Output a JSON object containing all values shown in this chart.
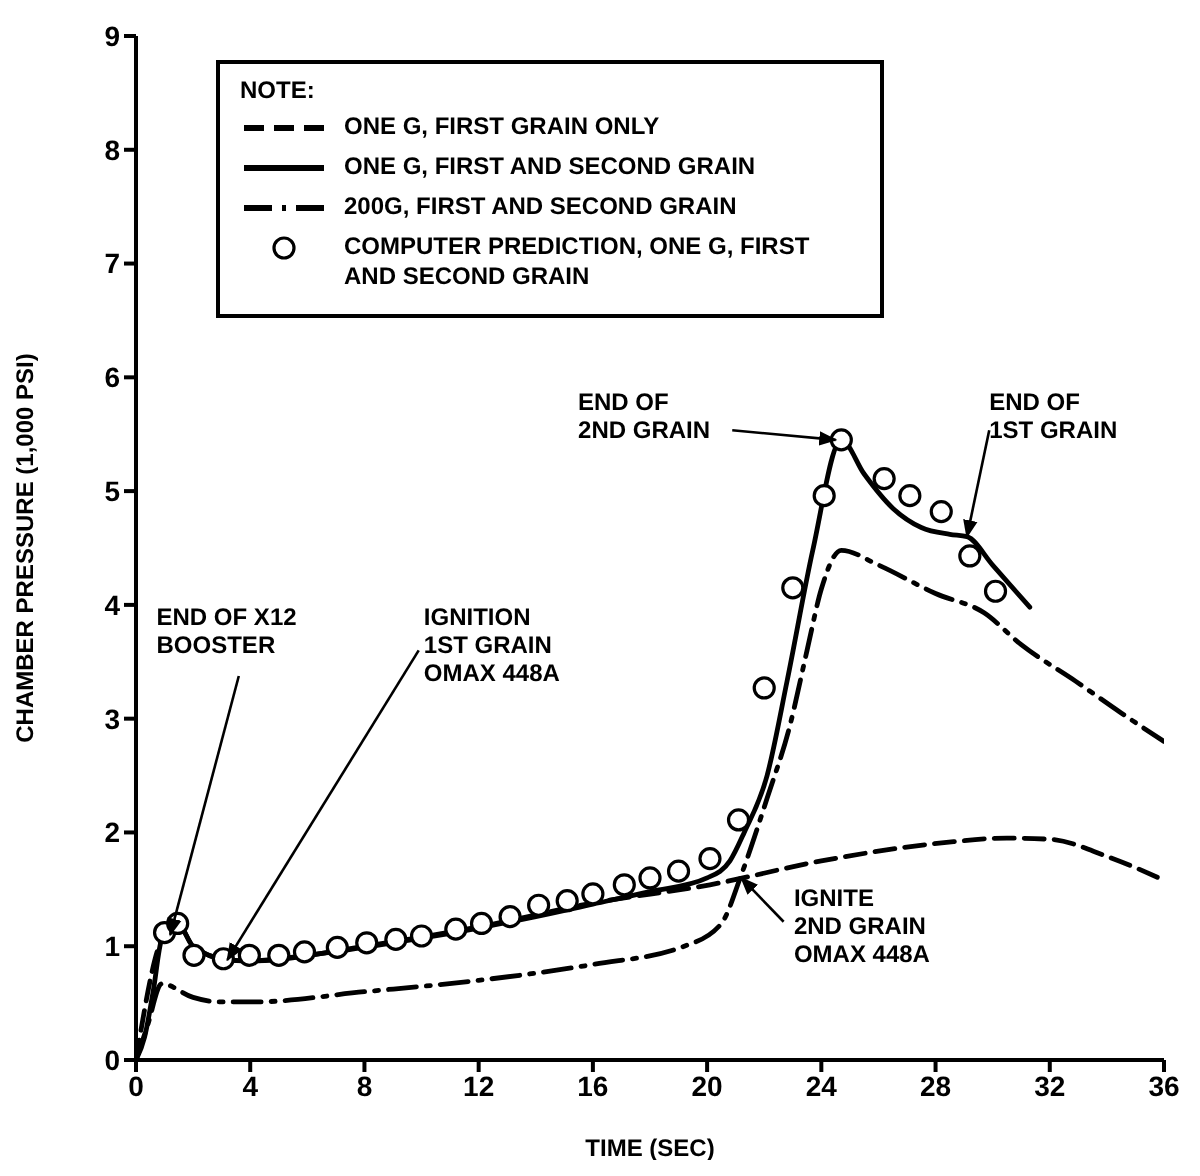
{
  "chart_data": {
    "type": "line",
    "xlabel": "TIME (SEC)",
    "ylabel": "CHAMBER PRESSURE (1,000 PSI)",
    "legend_title": "NOTE:",
    "legend": "top left",
    "grid": false,
    "xlim": [
      0,
      36
    ],
    "xticks": [
      0,
      4,
      8,
      12,
      16,
      20,
      24,
      28,
      32,
      36
    ],
    "ylim": [
      0,
      9
    ],
    "yticks": [
      0,
      1,
      2,
      3,
      4,
      5,
      6,
      7,
      8,
      9
    ],
    "series": [
      {
        "name": "ONE G, FIRST GRAIN ONLY",
        "color": "#000000",
        "line_style": "dashed",
        "marker": "none",
        "x": [
          0,
          0.9,
          1.45,
          2,
          3.2,
          4,
          8,
          12,
          16,
          20.1,
          24,
          28.3,
          30.5,
          32,
          34,
          36
        ],
        "values": [
          0,
          1.06,
          1.2,
          1.0,
          0.88,
          0.87,
          1.0,
          1.17,
          1.38,
          1.54,
          1.75,
          1.91,
          1.95,
          1.94,
          1.79,
          1.58
        ]
      },
      {
        "name": "ONE G, FIRST AND SECOND GRAIN",
        "color": "#000000",
        "line_style": "solid",
        "marker": "none",
        "x": [
          0,
          0.3,
          0.6,
          0.9,
          1.45,
          2,
          3.2,
          4,
          6,
          8,
          10,
          12,
          14,
          16,
          18,
          20,
          20.8,
          21.3,
          22.1,
          22.8,
          23.7,
          24.7,
          25.5,
          26.5,
          27.5,
          28.5,
          29.1,
          30,
          31.3
        ],
        "values": [
          0,
          0.2,
          0.6,
          1.06,
          1.2,
          1.0,
          0.88,
          0.87,
          0.92,
          0.99,
          1.07,
          1.16,
          1.26,
          1.37,
          1.48,
          1.6,
          1.75,
          2.0,
          2.5,
          3.33,
          4.48,
          5.45,
          5.15,
          4.85,
          4.68,
          4.62,
          4.6,
          4.35,
          3.98
        ]
      },
      {
        "name": "200G, FIRST AND SECOND GRAIN",
        "color": "#000000",
        "line_style": "dashdot",
        "marker": "none",
        "x": [
          0,
          0.4,
          0.9,
          2,
          2.9,
          4.1,
          8,
          12,
          16,
          19.2,
          20.5,
          21.2,
          22.1,
          22.9,
          23.5,
          24,
          24.7,
          26,
          28,
          29.7,
          31,
          32.9,
          34.5,
          36
        ],
        "values": [
          0,
          0.3,
          0.67,
          0.55,
          0.51,
          0.51,
          0.6,
          0.7,
          0.84,
          1.0,
          1.2,
          1.63,
          2.3,
          2.94,
          3.6,
          4.14,
          4.48,
          4.35,
          4.1,
          3.93,
          3.65,
          3.33,
          3.05,
          2.8
        ]
      },
      {
        "name": "COMPUTER PREDICTION, ONE G, FIRST AND SECOND GRAIN",
        "type": "scatter",
        "color": "#000000",
        "marker": "circle",
        "x": [
          1.0,
          1.46,
          2.03,
          3.06,
          3.97,
          5.0,
          5.9,
          7.05,
          8.08,
          9.1,
          10.0,
          11.2,
          12.1,
          13.1,
          14.1,
          15.1,
          16.0,
          17.1,
          18.0,
          19.0,
          20.1,
          21.1,
          22.0,
          23.0,
          24.1,
          24.7,
          26.2,
          27.1,
          28.2,
          29.2,
          30.1
        ],
        "values": [
          1.12,
          1.2,
          0.92,
          0.89,
          0.92,
          0.92,
          0.95,
          0.99,
          1.03,
          1.06,
          1.09,
          1.15,
          1.2,
          1.26,
          1.36,
          1.4,
          1.46,
          1.54,
          1.6,
          1.66,
          1.77,
          2.11,
          3.27,
          4.15,
          4.96,
          5.45,
          5.11,
          4.96,
          4.82,
          4.43,
          4.12
        ]
      }
    ],
    "annotations": [
      {
        "text": "END OF X12\nBOOSTER",
        "x": 1.2,
        "y": 1.1
      },
      {
        "text": "IGNITION\n1ST GRAIN\nOMAX 448A",
        "x": 3.2,
        "y": 0.88
      },
      {
        "text": "END OF\n2ND GRAIN",
        "x": 24.5,
        "y": 5.45
      },
      {
        "text": "END OF\n1ST GRAIN",
        "x": 29.1,
        "y": 4.6
      },
      {
        "text": "IGNITE\n2ND GRAIN\nOMAX 448A",
        "x": 21.2,
        "y": 1.6
      }
    ]
  }
}
